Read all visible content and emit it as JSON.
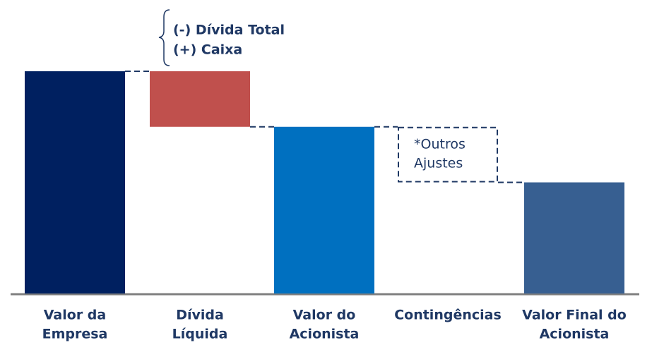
{
  "chart_data": {
    "type": "waterfall",
    "annotation": [
      "(-) Dívida Total",
      "(+) Caixa"
    ],
    "box_label": [
      "*Outros",
      "Ajustes"
    ],
    "categories": [
      [
        "Valor da",
        "Empresa"
      ],
      [
        "Dívida",
        "Líquida"
      ],
      [
        "Valor do",
        "Acionista"
      ],
      [
        "Contingências"
      ],
      [
        "Valor Final do",
        "Acionista"
      ]
    ],
    "values": [
      100,
      -25,
      75,
      -25,
      50
    ],
    "totals": [
      true,
      false,
      true,
      false,
      true
    ],
    "colors": [
      "#002060",
      "#c0504d",
      "#0070c0",
      "none",
      "#375f91"
    ],
    "ylim": [
      0,
      100
    ]
  }
}
